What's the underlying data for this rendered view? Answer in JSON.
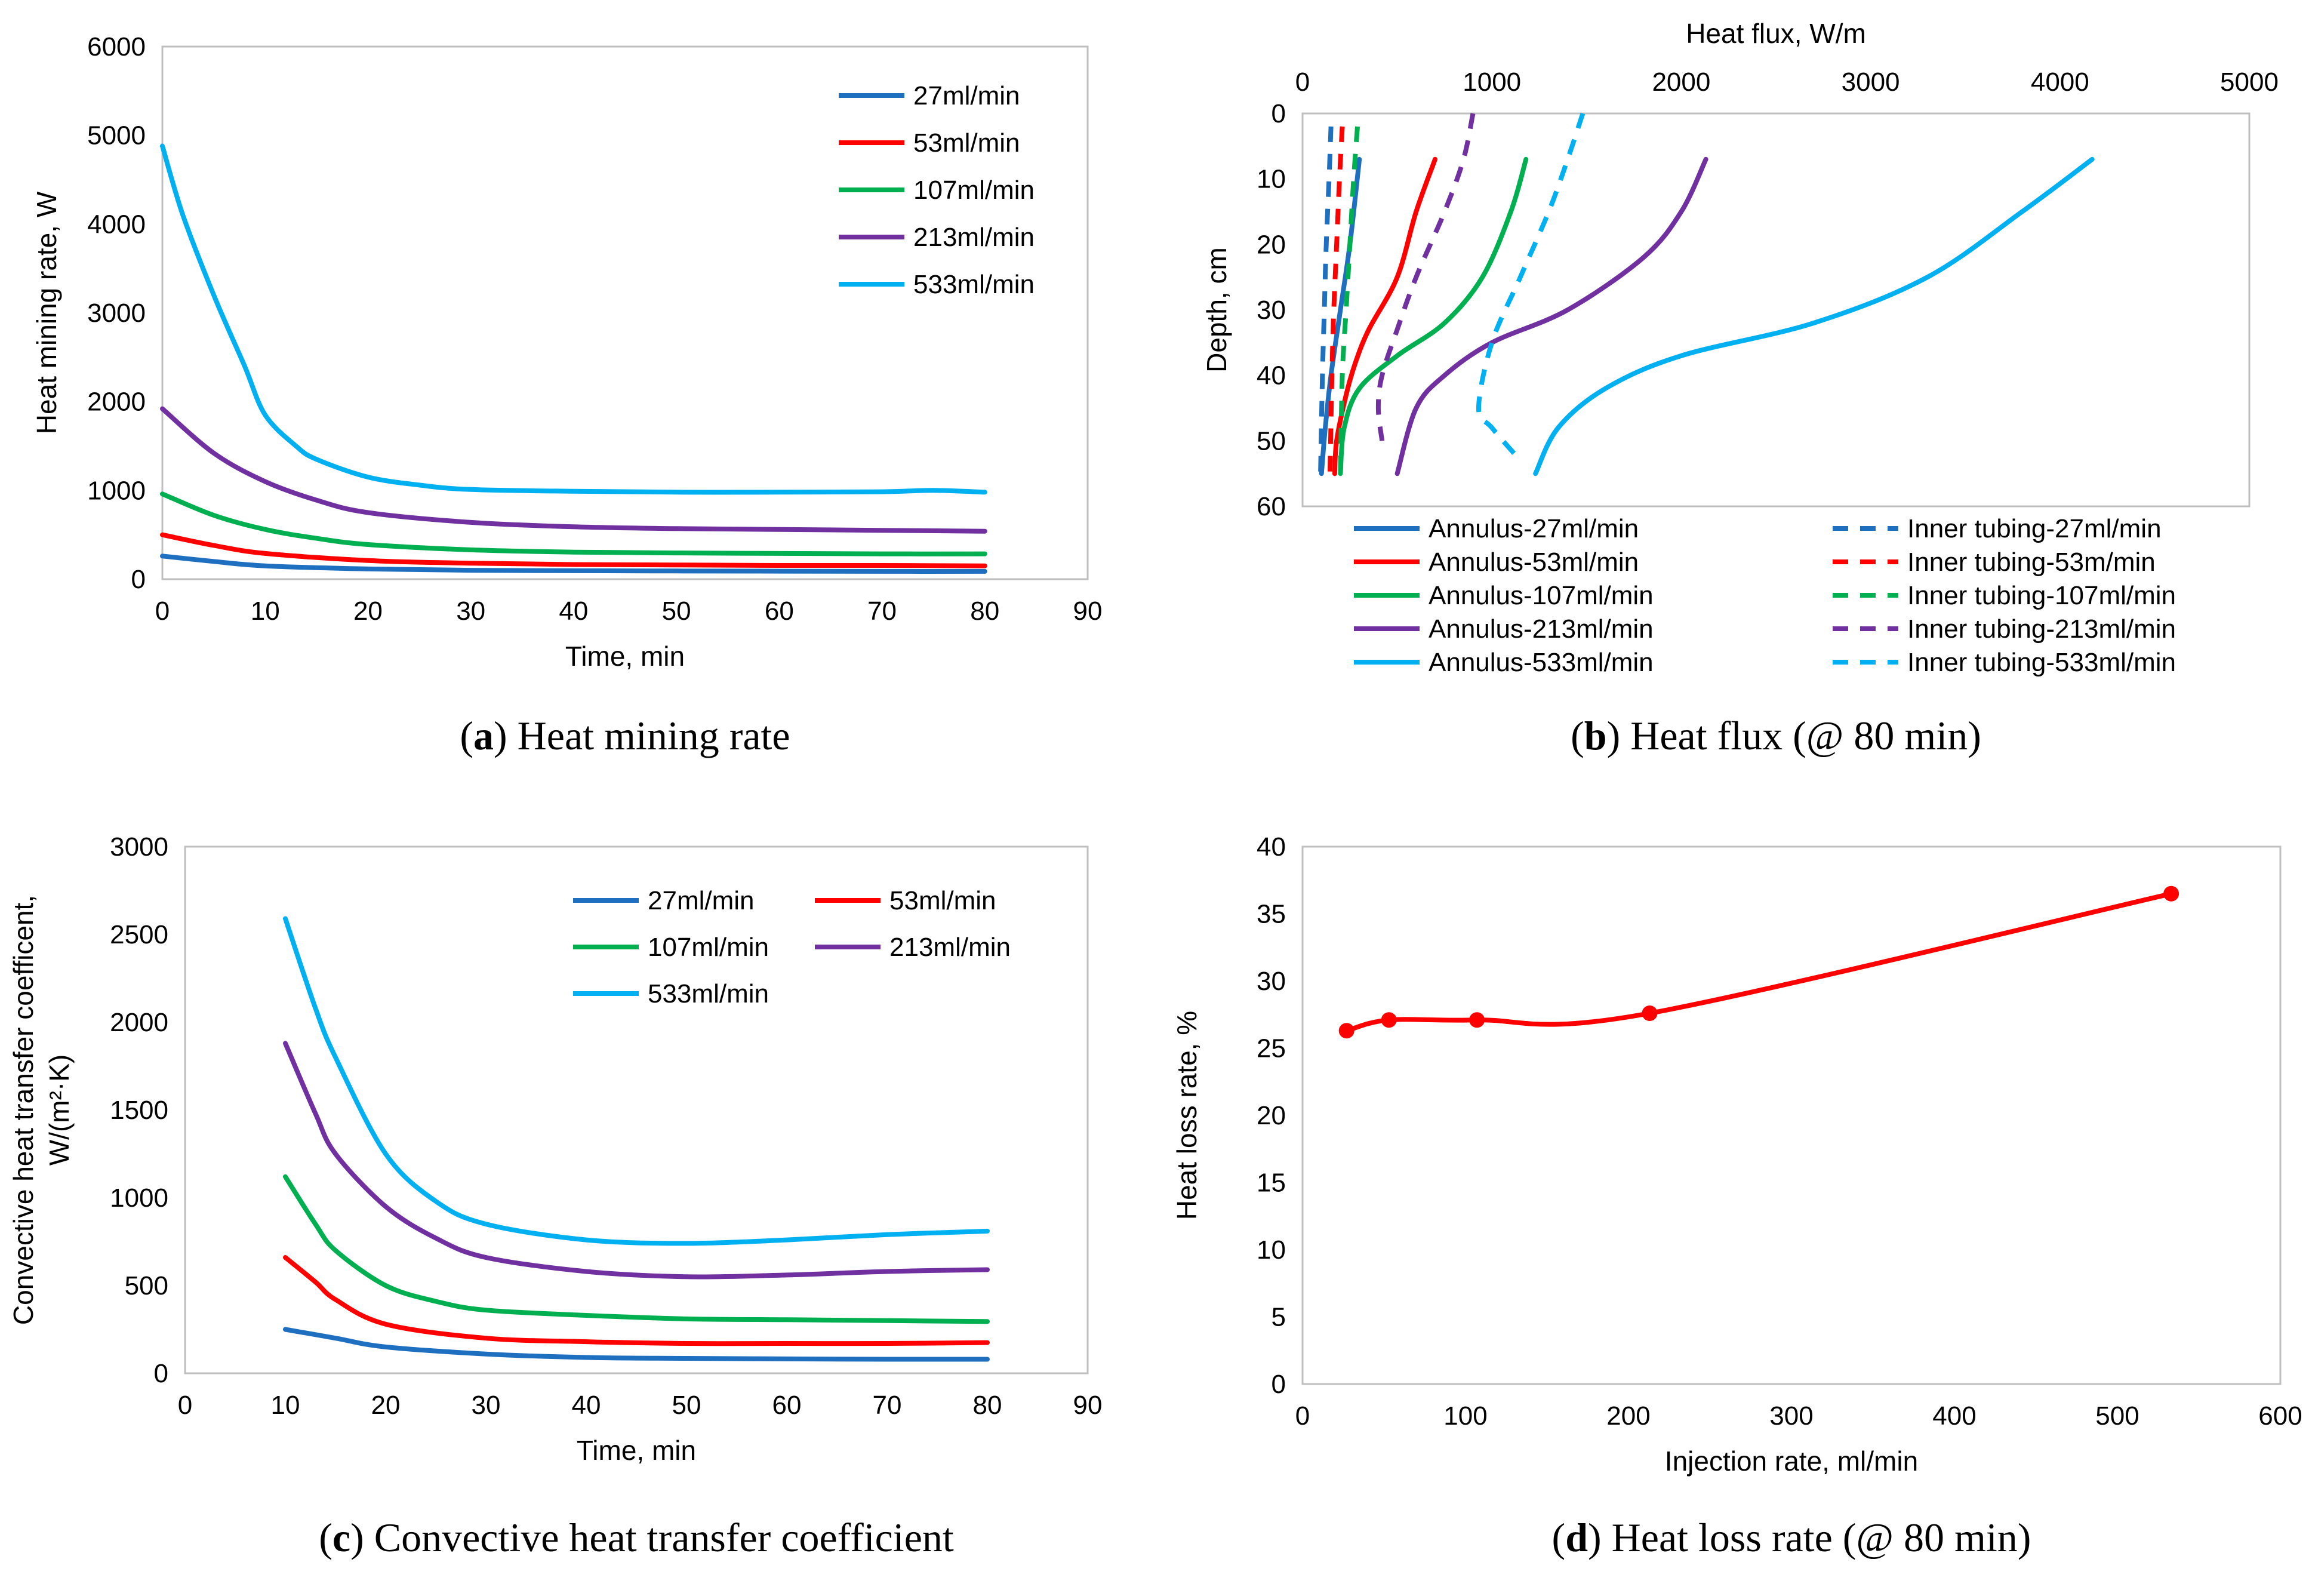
{
  "chart_data": [
    {
      "id": "a",
      "type": "line",
      "caption_letter": "a",
      "caption_text": " Heat mining rate",
      "xlabel": "Time,  min",
      "ylabel": "Heat mining rate, W",
      "xlim": [
        0,
        90
      ],
      "ylim": [
        0,
        6000
      ],
      "xticks": [
        0,
        10,
        20,
        30,
        40,
        50,
        60,
        70,
        80,
        90
      ],
      "yticks": [
        0,
        1000,
        2000,
        3000,
        4000,
        5000,
        6000
      ],
      "legend_position": "top-right",
      "series": [
        {
          "name": "27ml/min",
          "color": "#1f6fc0",
          "x": [
            0,
            5,
            10,
            20,
            30,
            40,
            50,
            60,
            70,
            80
          ],
          "y": [
            260,
            200,
            150,
            115,
            100,
            95,
            92,
            90,
            88,
            88
          ]
        },
        {
          "name": "53ml/min",
          "color": "#ff0000",
          "x": [
            0,
            5,
            10,
            20,
            30,
            40,
            50,
            60,
            70,
            80
          ],
          "y": [
            500,
            380,
            290,
            210,
            180,
            165,
            160,
            155,
            155,
            150
          ]
        },
        {
          "name": "107ml/min",
          "color": "#00b050",
          "x": [
            0,
            5,
            10,
            15,
            20,
            30,
            40,
            50,
            60,
            70,
            80
          ],
          "y": [
            960,
            720,
            560,
            460,
            390,
            330,
            305,
            295,
            290,
            285,
            285
          ]
        },
        {
          "name": "213ml/min",
          "color": "#7030a0",
          "x": [
            0,
            5,
            10,
            15,
            20,
            30,
            40,
            50,
            60,
            70,
            80
          ],
          "y": [
            1920,
            1420,
            1100,
            890,
            750,
            640,
            590,
            570,
            560,
            550,
            540
          ]
        },
        {
          "name": "533ml/min",
          "color": "#00b0f0",
          "x": [
            0,
            2,
            5,
            8,
            10,
            13,
            15,
            20,
            25,
            30,
            40,
            50,
            60,
            70,
            75,
            80
          ],
          "y": [
            4880,
            4100,
            3200,
            2400,
            1850,
            1500,
            1350,
            1150,
            1060,
            1010,
            990,
            980,
            980,
            985,
            1000,
            980
          ]
        }
      ]
    },
    {
      "id": "b",
      "type": "line",
      "caption_letter": "b",
      "caption_text": " Heat flux (@ 80 min)",
      "xlabel": "Heat flux, W/m",
      "ylabel": "Depth, cm",
      "xlim": [
        0,
        5000
      ],
      "ylim": [
        0,
        60
      ],
      "y_inverted": true,
      "x_axis_position": "top",
      "xticks": [
        0,
        1000,
        2000,
        3000,
        4000,
        5000
      ],
      "yticks": [
        0,
        10,
        20,
        30,
        40,
        50,
        60
      ],
      "legend_position": "bottom",
      "series": [
        {
          "name": "Annulus-27ml/min",
          "color": "#1f6fc0",
          "dash": false,
          "x": [
            300,
            250,
            200,
            150,
            120,
            100
          ],
          "y": [
            7,
            20,
            30,
            40,
            48,
            55
          ]
        },
        {
          "name": "Inner tubing-27ml/min",
          "color": "#1f6fc0",
          "dash": true,
          "x": [
            150,
            140,
            125,
            115,
            105,
            95
          ],
          "y": [
            2,
            10,
            20,
            30,
            40,
            55
          ]
        },
        {
          "name": "Annulus-53ml/min",
          "color": "#ff0000",
          "dash": false,
          "x": [
            700,
            600,
            500,
            350,
            280,
            230,
            180,
            170
          ],
          "y": [
            7,
            15,
            25,
            33,
            38,
            43,
            50,
            55
          ]
        },
        {
          "name": "Inner tubing-53m/min",
          "color": "#ff0000",
          "dash": true,
          "x": [
            210,
            195,
            180,
            165,
            155,
            145
          ],
          "y": [
            2,
            10,
            20,
            30,
            40,
            55
          ]
        },
        {
          "name": "Annulus-107ml/min",
          "color": "#00b050",
          "dash": false,
          "x": [
            1180,
            1100,
            950,
            750,
            500,
            300,
            220,
            200
          ],
          "y": [
            7,
            15,
            25,
            32,
            37,
            42,
            48,
            55
          ]
        },
        {
          "name": "Inner tubing-107ml/min",
          "color": "#00b050",
          "dash": true,
          "x": [
            290,
            270,
            250,
            230,
            210,
            200
          ],
          "y": [
            2,
            10,
            20,
            30,
            40,
            55
          ]
        },
        {
          "name": "Annulus-213ml/min",
          "color": "#7030a0",
          "dash": false,
          "x": [
            2130,
            2000,
            1800,
            1400,
            1000,
            750,
            600,
            500
          ],
          "y": [
            7,
            15,
            22,
            30,
            35,
            40,
            45,
            55
          ]
        },
        {
          "name": "Inner tubing-213ml/min",
          "color": "#7030a0",
          "dash": true,
          "x": [
            900,
            850,
            750,
            600,
            500,
            420,
            400,
            420
          ],
          "y": [
            0,
            7,
            15,
            25,
            33,
            40,
            45,
            50
          ]
        },
        {
          "name": "Annulus-533ml/min",
          "color": "#00b0f0",
          "dash": false,
          "x": [
            4170,
            3800,
            3300,
            2700,
            2000,
            1600,
            1350,
            1230
          ],
          "y": [
            7,
            15,
            25,
            32,
            37,
            42,
            48,
            55
          ]
        },
        {
          "name": "Inner tubing-533ml/min",
          "color": "#00b0f0",
          "dash": true,
          "x": [
            1480,
            1400,
            1300,
            1150,
            1000,
            930,
            1000,
            1150
          ],
          "y": [
            0,
            7,
            15,
            25,
            35,
            45,
            48,
            53
          ]
        }
      ]
    },
    {
      "id": "c",
      "type": "line",
      "caption_letter": "c",
      "caption_text": " Convective heat transfer coefficient",
      "xlabel": "Time,  min",
      "ylabel_line1": "Convective  heat transfer coefficent,",
      "ylabel_line2": "W/(m²·K)",
      "xlim": [
        0,
        90
      ],
      "ylim": [
        0,
        3000
      ],
      "xticks": [
        0,
        10,
        20,
        30,
        40,
        50,
        60,
        70,
        80,
        90
      ],
      "yticks": [
        0,
        500,
        1000,
        1500,
        2000,
        2500,
        3000
      ],
      "legend_position": "top-right",
      "series": [
        {
          "name": "27ml/min",
          "color": "#1f6fc0",
          "x": [
            10,
            15,
            20,
            30,
            40,
            50,
            60,
            70,
            80
          ],
          "y": [
            250,
            200,
            150,
            110,
            90,
            85,
            82,
            80,
            80
          ]
        },
        {
          "name": "53ml/min",
          "color": "#ff0000",
          "x": [
            10,
            13,
            15,
            20,
            30,
            40,
            50,
            60,
            70,
            80
          ],
          "y": [
            660,
            520,
            420,
            280,
            200,
            180,
            170,
            170,
            170,
            175
          ]
        },
        {
          "name": "107ml/min",
          "color": "#00b050",
          "x": [
            10,
            13,
            15,
            20,
            25,
            30,
            40,
            50,
            60,
            70,
            80
          ],
          "y": [
            1120,
            850,
            700,
            500,
            410,
            360,
            330,
            310,
            305,
            300,
            295
          ]
        },
        {
          "name": "213ml/min",
          "color": "#7030a0",
          "x": [
            10,
            13,
            15,
            20,
            25,
            30,
            40,
            50,
            60,
            70,
            80
          ],
          "y": [
            1880,
            1480,
            1250,
            950,
            770,
            660,
            580,
            550,
            560,
            580,
            590
          ]
        },
        {
          "name": "533ml/min",
          "color": "#00b0f0",
          "x": [
            10,
            13,
            15,
            20,
            25,
            30,
            40,
            50,
            60,
            70,
            80
          ],
          "y": [
            2590,
            2080,
            1800,
            1250,
            980,
            850,
            760,
            740,
            760,
            790,
            810
          ]
        }
      ]
    },
    {
      "id": "d",
      "type": "line",
      "caption_letter": "d",
      "caption_text": " Heat loss rate (@ 80 min)",
      "xlabel": "Injection rate, ml/min",
      "ylabel": "Heat loss rate, %",
      "xlim": [
        0,
        600
      ],
      "ylim": [
        0,
        40
      ],
      "xticks": [
        0,
        100,
        200,
        300,
        400,
        500,
        600
      ],
      "yticks": [
        0,
        5,
        10,
        15,
        20,
        25,
        30,
        35,
        40
      ],
      "series": [
        {
          "name": "Heat loss rate",
          "color": "#ff0000",
          "markers": true,
          "x": [
            27,
            53,
            107,
            213,
            533
          ],
          "y": [
            26.3,
            27.1,
            27.1,
            27.6,
            36.5
          ]
        }
      ]
    }
  ]
}
